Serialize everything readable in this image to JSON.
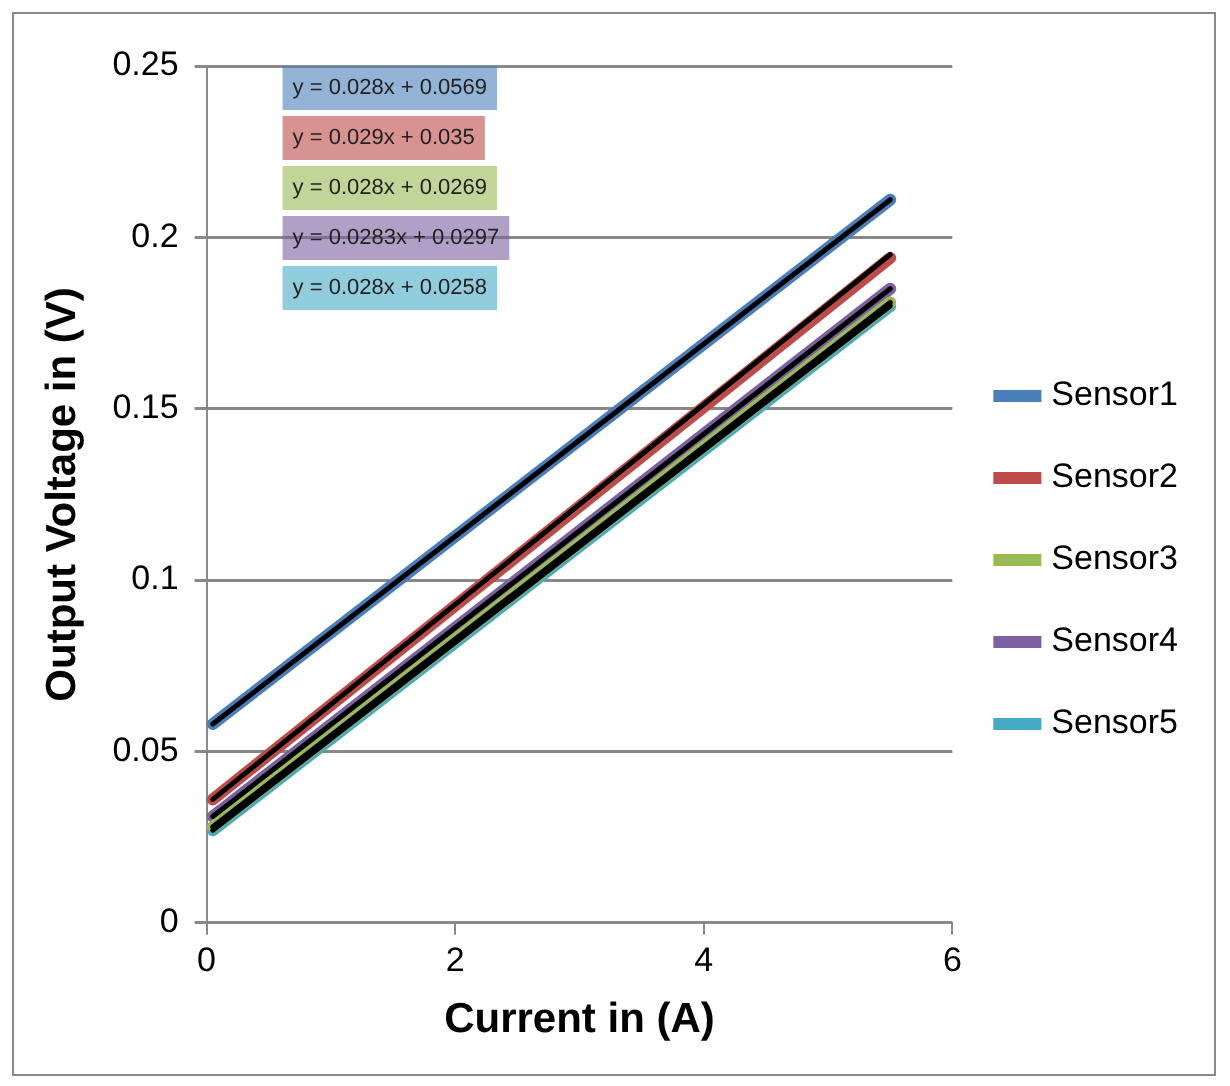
{
  "chart_data": {
    "type": "line",
    "xlabel": "Current in (A)",
    "ylabel": "Output Voltage in (V)",
    "xlim": [
      0,
      6
    ],
    "xticks": [
      0,
      2,
      4,
      6
    ],
    "ylim": [
      0,
      0.25
    ],
    "yticks": [
      0,
      0.05,
      0.1,
      0.15,
      0.2,
      0.25
    ],
    "grid": "y",
    "legend": "right",
    "marker": "none",
    "x": [
      0.05,
      5.5
    ],
    "series": [
      {
        "name": "Sensor1",
        "color": "#4a7ebb",
        "values": [
          0.058,
          0.211
        ]
      },
      {
        "name": "Sensor2",
        "color": "#be4b48",
        "values": [
          0.036,
          0.194
        ]
      },
      {
        "name": "Sensor3",
        "color": "#98b954",
        "values": [
          0.028,
          0.181
        ]
      },
      {
        "name": "Sensor4",
        "color": "#7d60a0",
        "values": [
          0.031,
          0.185
        ]
      },
      {
        "name": "Sensor5",
        "color": "#46aac5",
        "values": [
          0.027,
          0.18
        ]
      },
      {
        "type": "line",
        "color": "#000000",
        "values": [
          0.058,
          0.211
        ]
      },
      {
        "type": "line",
        "color": "#000000",
        "values": [
          0.036,
          0.195
        ]
      },
      {
        "type": "line",
        "color": "#000000",
        "values": [
          0.028,
          0.181
        ]
      },
      {
        "type": "line",
        "color": "#000000",
        "values": [
          0.031,
          0.185
        ]
      },
      {
        "type": "line",
        "color": "#000000",
        "values": [
          0.027,
          0.18
        ]
      }
    ],
    "annotations": [
      "y = 0.028x + 0.0569",
      "y = 0.029x + 0.035",
      "y = 0.028x + 0.0269",
      "y = 0.0283x + 0.0297",
      "y = 0.028x + 0.0258"
    ]
  }
}
